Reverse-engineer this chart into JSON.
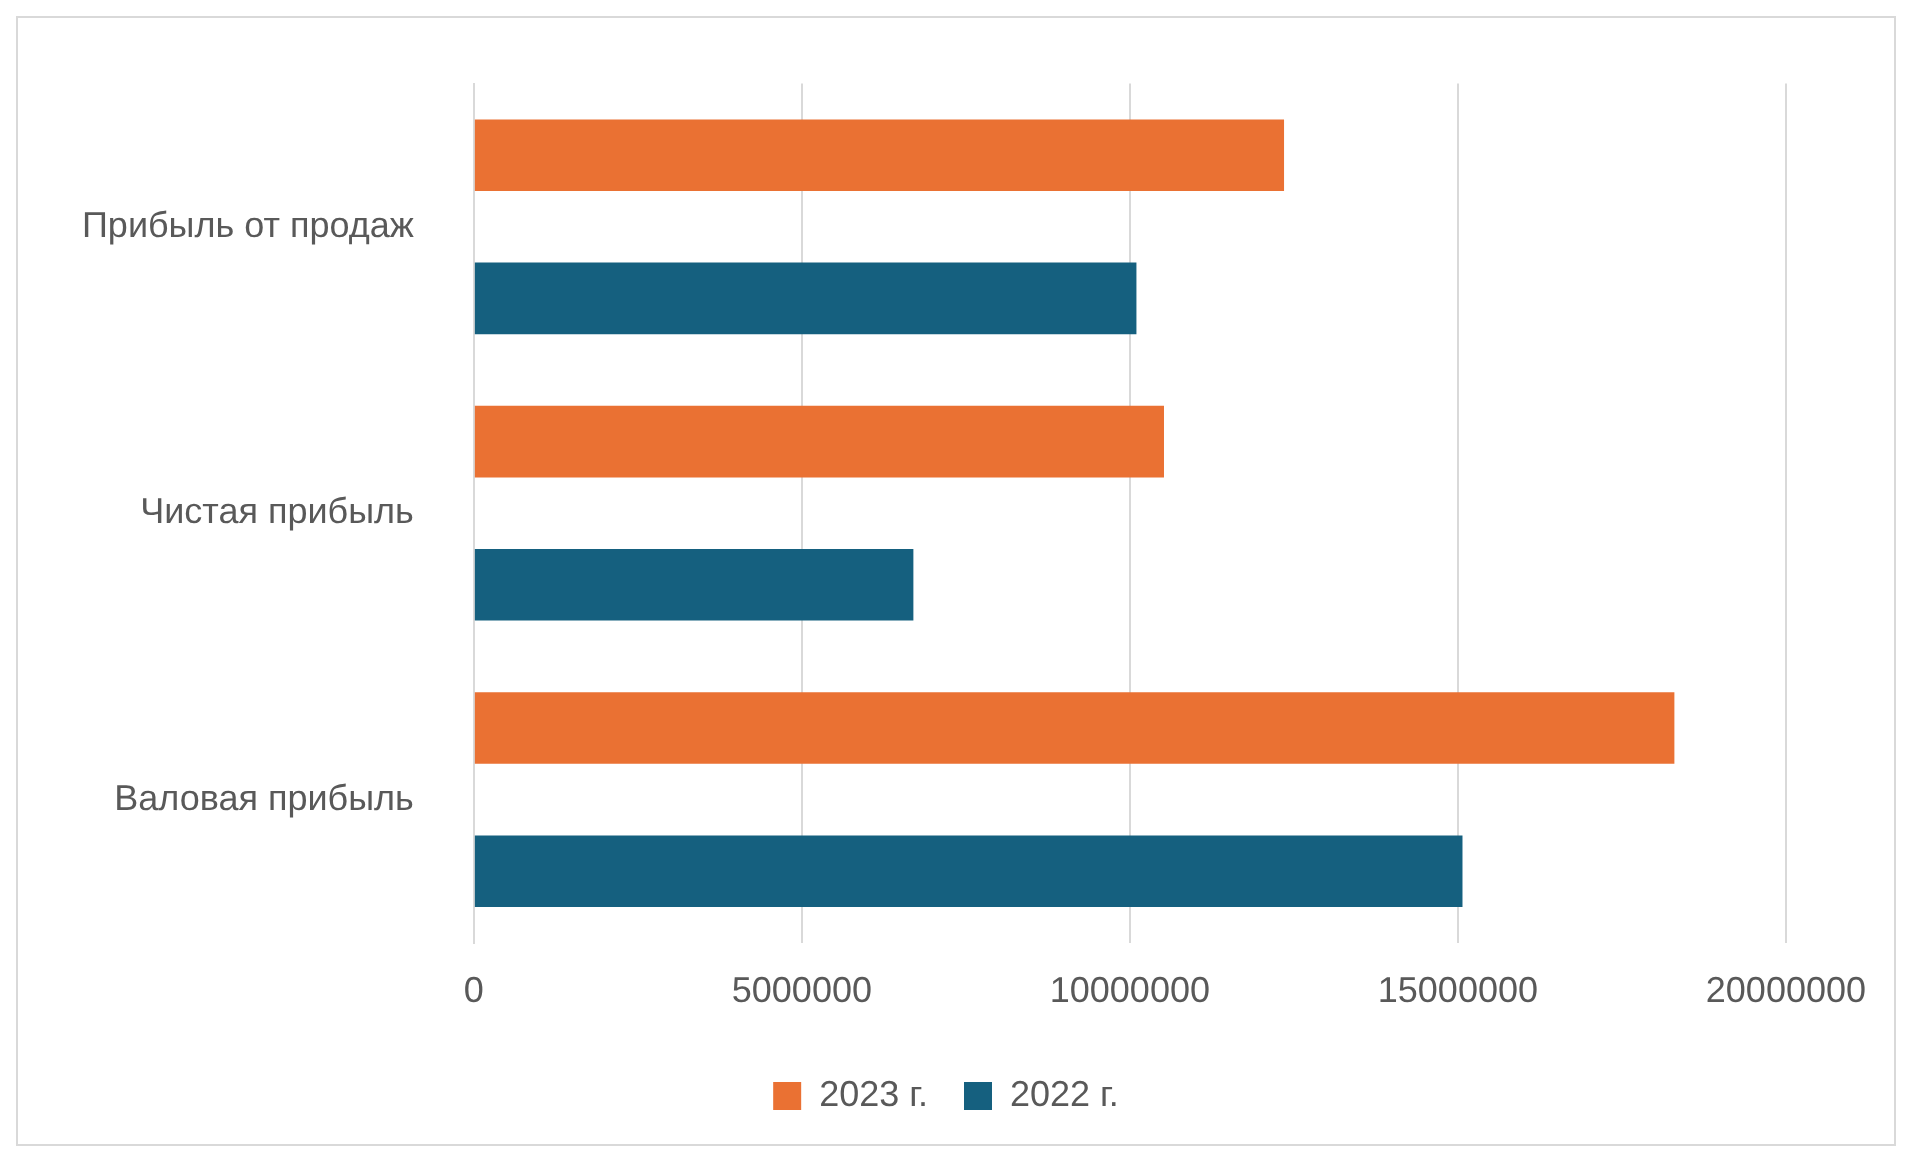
{
  "chart_data": {
    "type": "bar",
    "orientation": "horizontal",
    "categories": [
      "Прибыль от продаж",
      "Чистая прибыль",
      "Валовая прибыль"
    ],
    "series": [
      {
        "name": "2023 г.",
        "color": "#ea7133",
        "values": [
          12350000,
          10520000,
          18300000
        ]
      },
      {
        "name": "2022 г.",
        "color": "#15607f",
        "values": [
          10100000,
          6700000,
          15070000
        ]
      }
    ],
    "xlim": [
      0,
      20000000
    ],
    "xticks": [
      0,
      5000000,
      10000000,
      15000000,
      20000000
    ],
    "grid": "x",
    "legend": "bottom"
  }
}
